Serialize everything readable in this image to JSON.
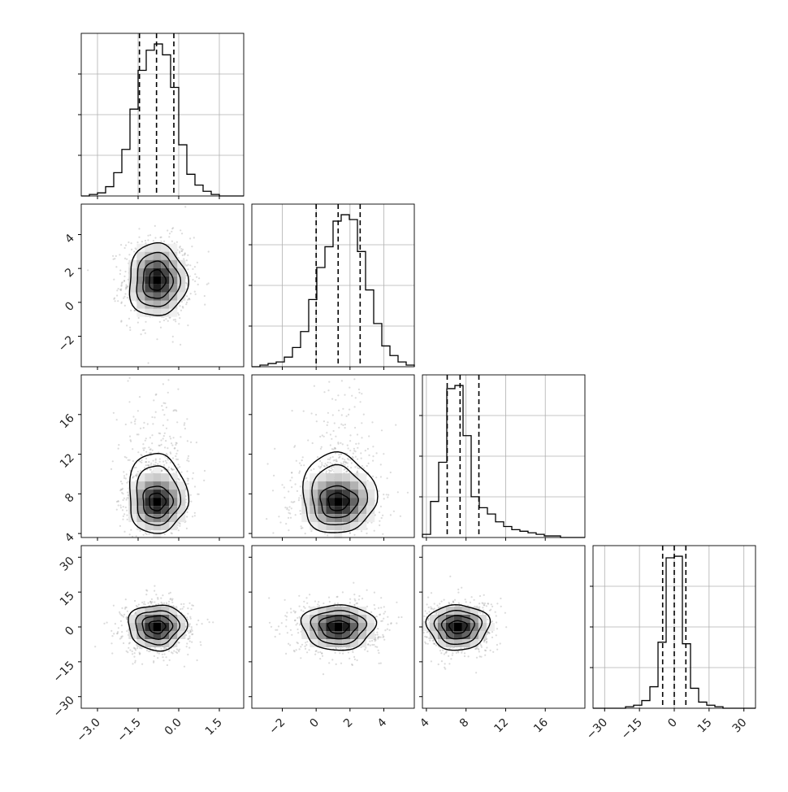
{
  "chart_data": {
    "type": "corner",
    "grid": true,
    "parameters": [
      {
        "range": [
          -3.6,
          2.4
        ],
        "ticks": [
          -3.0,
          -1.5,
          0.0,
          1.5
        ],
        "tick_labels": [
          "−3.0",
          "−1.5",
          "0.0",
          "1.5"
        ],
        "quantiles": [
          -1.45,
          -0.82,
          -0.18
        ],
        "hist_counts": [
          0,
          1,
          2,
          6,
          15,
          30,
          56,
          81,
          94,
          98,
          91,
          70,
          33,
          14,
          7,
          3,
          1,
          0,
          0,
          0
        ]
      },
      {
        "range": [
          -3.8,
          5.8
        ],
        "ticks": [
          -2,
          0,
          2,
          4
        ],
        "tick_labels": [
          "−2",
          "0",
          "2",
          "4"
        ],
        "quantiles": [
          0.0,
          1.3,
          2.6
        ],
        "hist_counts": [
          0,
          1,
          2,
          3,
          6,
          12,
          22,
          42,
          62,
          75,
          91,
          95,
          92,
          72,
          48,
          27,
          13,
          7,
          3,
          1
        ]
      },
      {
        "range": [
          3.6,
          20.0
        ],
        "ticks": [
          4,
          8,
          12,
          16
        ],
        "tick_labels": [
          "4",
          "8",
          "12",
          "16"
        ],
        "quantiles": [
          6.1,
          7.4,
          9.3
        ],
        "hist_counts": [
          2,
          23,
          48,
          95,
          97,
          65,
          26,
          19,
          15,
          10,
          7,
          5,
          4,
          3,
          2,
          1,
          1,
          0,
          0,
          0
        ]
      },
      {
        "range": [
          -35,
          35
        ],
        "ticks": [
          -30,
          -15,
          0,
          15,
          30
        ],
        "tick_labels": [
          "−30",
          "−15",
          "0",
          "15",
          "30"
        ],
        "quantiles": [
          -5.0,
          0.0,
          5.0
        ],
        "hist_counts": [
          0,
          0,
          0,
          0,
          1,
          2,
          5,
          14,
          43,
          98,
          99,
          42,
          13,
          4,
          2,
          1,
          0,
          0,
          0,
          0
        ]
      }
    ],
    "joint_centers": {
      "1-0": {
        "center": [
          -0.8,
          1.3
        ],
        "spread": [
          0.55,
          1.1
        ]
      },
      "2-0": {
        "center": [
          -0.8,
          7.2
        ],
        "spread": [
          0.55,
          1.6
        ]
      },
      "2-1": {
        "center": [
          1.3,
          7.2
        ],
        "spread": [
          1.1,
          1.6
        ]
      },
      "3-0": {
        "center": [
          -0.8,
          0.0
        ],
        "spread": [
          0.55,
          5.0
        ]
      },
      "3-1": {
        "center": [
          1.3,
          0.0
        ],
        "spread": [
          1.1,
          5.0
        ]
      },
      "3-2": {
        "center": [
          7.2,
          0.0
        ],
        "spread": [
          1.6,
          5.0
        ]
      }
    }
  }
}
